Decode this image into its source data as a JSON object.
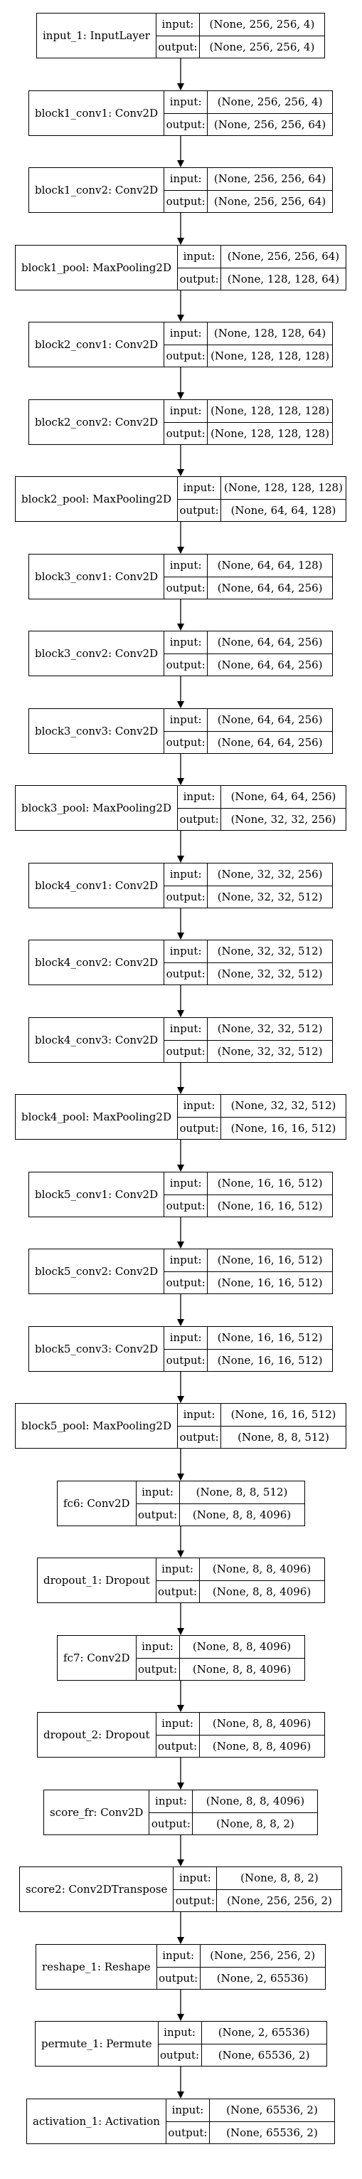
{
  "layers": [
    {
      "label": "input_1: InputLayer",
      "input": "(None, 256, 256, 4)",
      "output": "(None, 256, 256, 4)"
    },
    {
      "label": "block1_conv1: Conv2D",
      "input": "(None, 256, 256, 4)",
      "output": "(None, 256, 256, 64)"
    },
    {
      "label": "block1_conv2: Conv2D",
      "input": "(None, 256, 256, 64)",
      "output": "(None, 256, 256, 64)"
    },
    {
      "label": "block1_pool: MaxPooling2D",
      "input": "(None, 256, 256, 64)",
      "output": "(None, 128, 128, 64)"
    },
    {
      "label": "block2_conv1: Conv2D",
      "input": "(None, 128, 128, 64)",
      "output": "(None, 128, 128, 128)"
    },
    {
      "label": "block2_conv2: Conv2D",
      "input": "(None, 128, 128, 128)",
      "output": "(None, 128, 128, 128)"
    },
    {
      "label": "block2_pool: MaxPooling2D",
      "input": "(None, 128, 128, 128)",
      "output": "(None, 64, 64, 128)"
    },
    {
      "label": "block3_conv1: Conv2D",
      "input": "(None, 64, 64, 128)",
      "output": "(None, 64, 64, 256)"
    },
    {
      "label": "block3_conv2: Conv2D",
      "input": "(None, 64, 64, 256)",
      "output": "(None, 64, 64, 256)"
    },
    {
      "label": "block3_conv3: Conv2D",
      "input": "(None, 64, 64, 256)",
      "output": "(None, 64, 64, 256)"
    },
    {
      "label": "block3_pool: MaxPooling2D",
      "input": "(None, 64, 64, 256)",
      "output": "(None, 32, 32, 256)"
    },
    {
      "label": "block4_conv1: Conv2D",
      "input": "(None, 32, 32, 256)",
      "output": "(None, 32, 32, 512)"
    },
    {
      "label": "block4_conv2: Conv2D",
      "input": "(None, 32, 32, 512)",
      "output": "(None, 32, 32, 512)"
    },
    {
      "label": "block4_conv3: Conv2D",
      "input": "(None, 32, 32, 512)",
      "output": "(None, 32, 32, 512)"
    },
    {
      "label": "block4_pool: MaxPooling2D",
      "input": "(None, 32, 32, 512)",
      "output": "(None, 16, 16, 512)"
    },
    {
      "label": "block5_conv1: Conv2D",
      "input": "(None, 16, 16, 512)",
      "output": "(None, 16, 16, 512)"
    },
    {
      "label": "block5_conv2: Conv2D",
      "input": "(None, 16, 16, 512)",
      "output": "(None, 16, 16, 512)"
    },
    {
      "label": "block5_conv3: Conv2D",
      "input": "(None, 16, 16, 512)",
      "output": "(None, 16, 16, 512)"
    },
    {
      "label": "block5_pool: MaxPooling2D",
      "input": "(None, 16, 16, 512)",
      "output": "(None, 8, 8, 512)"
    },
    {
      "label": "fc6: Conv2D",
      "input": "(None, 8, 8, 512)",
      "output": "(None, 8, 8, 4096)"
    },
    {
      "label": "dropout_1: Dropout",
      "input": "(None, 8, 8, 4096)",
      "output": "(None, 8, 8, 4096)"
    },
    {
      "label": "fc7: Conv2D",
      "input": "(None, 8, 8, 4096)",
      "output": "(None, 8, 8, 4096)"
    },
    {
      "label": "dropout_2: Dropout",
      "input": "(None, 8, 8, 4096)",
      "output": "(None, 8, 8, 4096)"
    },
    {
      "label": "score_fr: Conv2D",
      "input": "(None, 8, 8, 4096)",
      "output": "(None, 8, 8, 2)"
    },
    {
      "label": "score2: Conv2DTranspose",
      "input": "(None, 8, 8, 2)",
      "output": "(None, 256, 256, 2)"
    },
    {
      "label": "reshape_1: Reshape",
      "input": "(None, 256, 256, 2)",
      "output": "(None, 2, 65536)"
    },
    {
      "label": "permute_1: Permute",
      "input": "(None, 2, 65536)",
      "output": "(None, 65536, 2)"
    },
    {
      "label": "activation_1: Activation",
      "input": "(None, 65536, 2)",
      "output": "(None, 65536, 2)"
    }
  ],
  "field_labels": {
    "input": "input:",
    "output": "output:"
  }
}
